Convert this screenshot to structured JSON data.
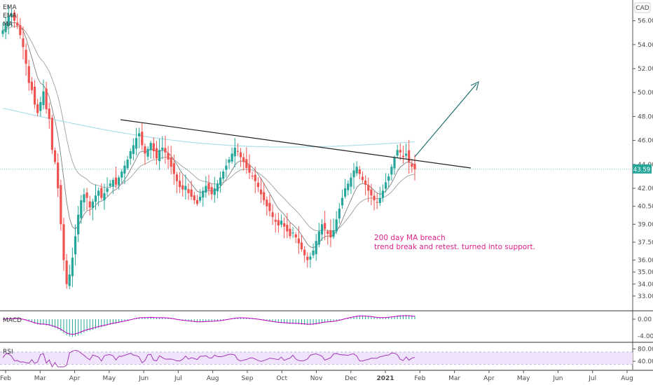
{
  "chart_data": {
    "type": "candlestick",
    "currency": "CAD",
    "overlay_labels": [
      "EMA",
      "EMA",
      "MA"
    ],
    "price_axis": {
      "ylim": [
        32.0,
        57.5
      ],
      "ticks": [
        "56.00",
        "54.00",
        "52.00",
        "50.00",
        "48.00",
        "46.00",
        "44.00",
        "42.00",
        "40.50",
        "39.00",
        "37.50",
        "36.00",
        "35.00",
        "34.00",
        "33.00"
      ]
    },
    "last_price": "43.59",
    "x_labels": [
      "Feb",
      "Mar",
      "Apr",
      "May",
      "Jun",
      "Jul",
      "Aug",
      "Sep",
      "Oct",
      "Nov",
      "Dec",
      "2021",
      "Feb",
      "Mar",
      "Apr",
      "May",
      "Jun",
      "Jul",
      "Aug"
    ],
    "close_series": [
      55.2,
      55.8,
      56.4,
      56.6,
      56.0,
      55.6,
      54.8,
      53.8,
      52.4,
      50.8,
      50.2,
      49.0,
      48.3,
      49.2,
      50.1,
      48.6,
      47.8,
      45.2,
      44.2,
      42.0,
      39.0,
      36.0,
      34.0,
      34.8,
      36.2,
      38.0,
      39.8,
      41.0,
      41.5,
      41.2,
      40.4,
      40.9,
      41.4,
      41.8,
      41.2,
      41.6,
      42.0,
      42.4,
      42.7,
      42.3,
      42.9,
      43.4,
      43.9,
      44.4,
      45.1,
      45.6,
      46.2,
      46.6,
      45.6,
      44.9,
      45.3,
      45.8,
      45.1,
      44.5,
      45.2,
      45.4,
      45.0,
      44.4,
      43.8,
      43.2,
      42.6,
      42.1,
      41.9,
      42.2,
      41.6,
      41.3,
      41.0,
      40.7,
      41.3,
      41.8,
      42.2,
      41.9,
      41.5,
      42.0,
      42.4,
      42.9,
      43.4,
      43.9,
      44.4,
      44.9,
      45.4,
      45.1,
      44.6,
      44.2,
      43.7,
      43.3,
      43.0,
      42.6,
      42.1,
      41.5,
      41.0,
      40.5,
      40.1,
      39.6,
      39.2,
      38.9,
      39.3,
      38.8,
      38.4,
      38.0,
      38.3,
      37.9,
      37.4,
      36.9,
      36.4,
      36.0,
      36.3,
      36.8,
      37.6,
      38.4,
      39.0,
      38.6,
      38.2,
      37.9,
      38.5,
      39.4,
      40.3,
      41.2,
      42.0,
      42.4,
      42.9,
      43.5,
      43.8,
      43.2,
      42.7,
      42.3,
      41.8,
      41.4,
      41.0,
      40.8,
      41.2,
      41.8,
      42.5,
      43.0,
      43.8,
      44.6,
      45.2,
      45.0,
      44.6,
      44.9,
      44.2,
      43.8,
      43.59
    ],
    "indicators": [
      {
        "name": "MACD",
        "ticks": [
          "0.00",
          "-4.00"
        ]
      },
      {
        "name": "RSI",
        "ticks": [
          "80.00",
          "40.00"
        ]
      }
    ],
    "annotations": [
      {
        "text": "200 day MA breach"
      },
      {
        "text": "trend break and retest. turned into support."
      }
    ],
    "colors": {
      "up": "#26a69a",
      "down": "#ef5350",
      "ema_fast": "#7f7f7f",
      "ema_slow": "#9e9e9e",
      "ma200": "#a6dde6",
      "macd": "#c000c0",
      "macd_hist": "#26a69a",
      "rsi": "#9c27b0",
      "rsi_band": "#efe4fb",
      "annotation": "#e0218a",
      "arrow": "#20706f",
      "price_label_bg": "#26a69a"
    }
  }
}
